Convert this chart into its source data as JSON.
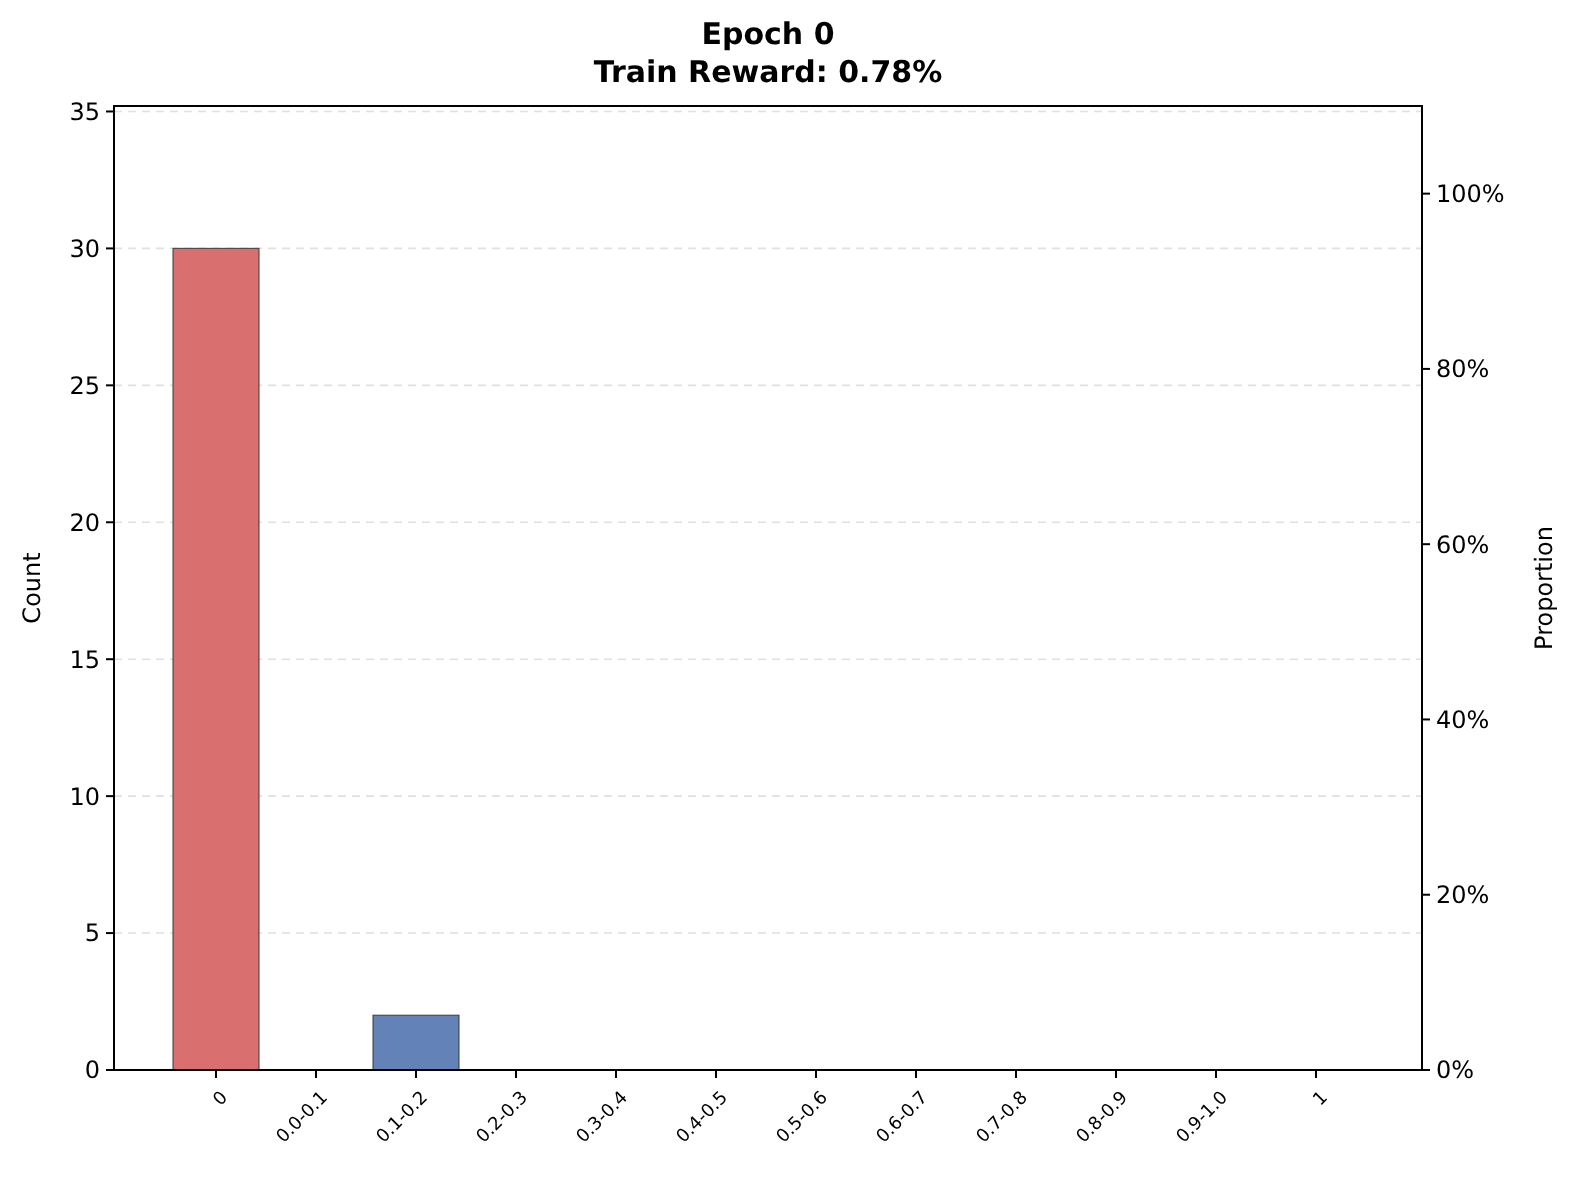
{
  "chart_data": {
    "type": "bar",
    "title": "Epoch 0",
    "subtitle": "Train Reward: 0.78%",
    "ylabel": "Count",
    "y2label": "Proportion",
    "categories": [
      "0",
      "0.0-0.1",
      "0.1-0.2",
      "0.2-0.3",
      "0.3-0.4",
      "0.4-0.5",
      "0.5-0.6",
      "0.6-0.7",
      "0.7-0.8",
      "0.8-0.9",
      "0.9-1.0",
      "1"
    ],
    "values": [
      30,
      0,
      2,
      0,
      0,
      0,
      0,
      0,
      0,
      0,
      0,
      0
    ],
    "colors": [
      "#d9706f",
      "#6282b8",
      "#6282b8",
      "#6282b8",
      "#6282b8",
      "#6282b8",
      "#6282b8",
      "#6282b8",
      "#6282b8",
      "#6282b8",
      "#6282b8",
      "#6282b8"
    ],
    "ylim": [
      0,
      35.2
    ],
    "yticks": [
      0,
      5,
      10,
      15,
      20,
      25,
      30,
      35
    ],
    "y2lim": [
      0,
      110
    ],
    "y2ticks": [
      {
        "value": 0,
        "label": "0%"
      },
      {
        "value": 20,
        "label": "20%"
      },
      {
        "value": 40,
        "label": "40%"
      },
      {
        "value": 60,
        "label": "60%"
      },
      {
        "value": 80,
        "label": "80%"
      },
      {
        "value": 100,
        "label": "100%"
      }
    ],
    "grid": "y"
  }
}
